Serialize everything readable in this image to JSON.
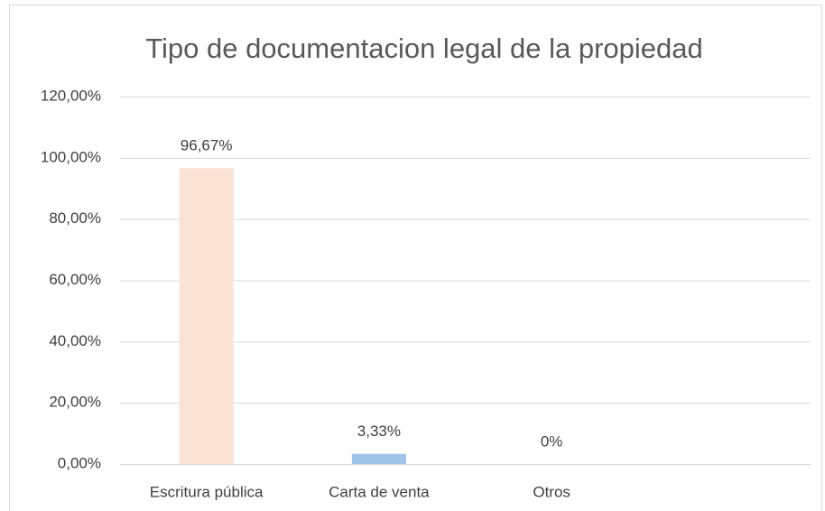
{
  "chart_data": {
    "type": "bar",
    "title": "Tipo de documentacion legal de la propiedad",
    "categories": [
      "Escritura pública",
      "Carta de venta",
      "Otros",
      null
    ],
    "values": [
      96.67,
      3.33,
      0,
      null
    ],
    "value_labels": [
      "96,67%",
      "3,33%",
      "0%",
      null
    ],
    "colors": [
      "#fbe3d5",
      "#9dc3e6",
      "#a9c4eb",
      null
    ],
    "ylim": [
      0,
      120
    ],
    "yticks": [
      {
        "value": 0,
        "label": "0,00%"
      },
      {
        "value": 20,
        "label": "20,00%"
      },
      {
        "value": 40,
        "label": "40,00%"
      },
      {
        "value": 60,
        "label": "60,00%"
      },
      {
        "value": 80,
        "label": "80,00%"
      },
      {
        "value": 100,
        "label": "100,00%"
      },
      {
        "value": 120,
        "label": "120,00%"
      }
    ],
    "grid": true
  }
}
